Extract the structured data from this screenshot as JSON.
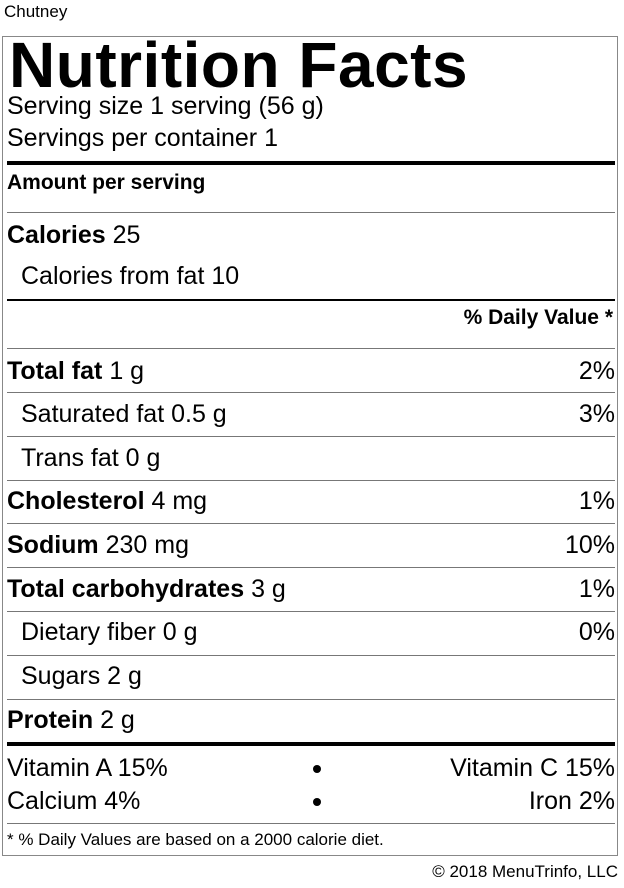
{
  "product_name": "Chutney",
  "title": "Nutrition Facts",
  "serving": {
    "size_label": "Serving size",
    "size_value": "1 serving (56 g)",
    "per_container_label": "Servings per container",
    "per_container_value": "1"
  },
  "amount_per_serving": "Amount per serving",
  "calories": {
    "label": "Calories",
    "value": "25",
    "from_fat_label": "Calories from fat",
    "from_fat_value": "10"
  },
  "daily_value_header": "% Daily Value *",
  "nutrients": [
    {
      "name": "Total fat",
      "amount": "1 g",
      "pct": "2%"
    },
    {
      "name": "Saturated fat",
      "amount": "0.5 g",
      "pct": "3%"
    },
    {
      "name": "Trans fat",
      "amount": "0 g",
      "pct": ""
    },
    {
      "name": "Cholesterol",
      "amount": "4 mg",
      "pct": "1%"
    },
    {
      "name": "Sodium",
      "amount": "230 mg",
      "pct": "10%"
    },
    {
      "name": "Total carbohydrates",
      "amount": "3 g",
      "pct": "1%"
    },
    {
      "name": "Dietary fiber",
      "amount": "0 g",
      "pct": "0%"
    },
    {
      "name": "Sugars",
      "amount": "2 g",
      "pct": ""
    },
    {
      "name": "Protein",
      "amount": "2 g",
      "pct": ""
    }
  ],
  "vitamins": [
    {
      "left": "Vitamin A 15%",
      "right": "Vitamin C 15%"
    },
    {
      "left": "Calcium 4%",
      "right": "Iron 2%"
    }
  ],
  "footnote": "* % Daily Values are based on a 2000 calorie diet.",
  "copyright": "© 2018 MenuTrinfo, LLC"
}
